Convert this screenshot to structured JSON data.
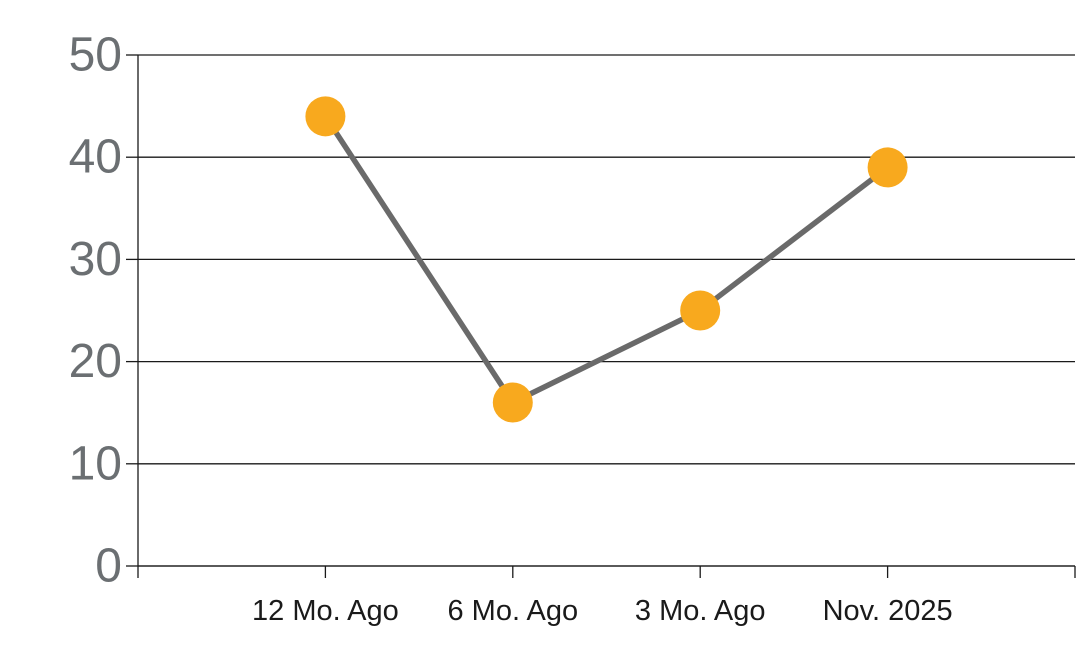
{
  "chart_data": {
    "type": "line",
    "categories": [
      "12 Mo. Ago",
      "6 Mo. Ago",
      "3 Mo. Ago",
      "Nov. 2025"
    ],
    "values": [
      44,
      16,
      25,
      39
    ],
    "title": "",
    "xlabel": "",
    "ylabel": "",
    "ylim": [
      0,
      50
    ],
    "yticks": [
      0,
      10,
      20,
      30,
      40,
      50
    ],
    "grid": true,
    "legend": false,
    "styles": {
      "marker_color": "#F8A91E",
      "line_color": "#6A6A6A",
      "grid_color": "#1A1A1A",
      "axis_color": "#1A1A1A",
      "y_tick_label_color": "#6B6F72",
      "x_tick_label_color": "#1A1A1A",
      "background": "#FFFFFF"
    }
  }
}
